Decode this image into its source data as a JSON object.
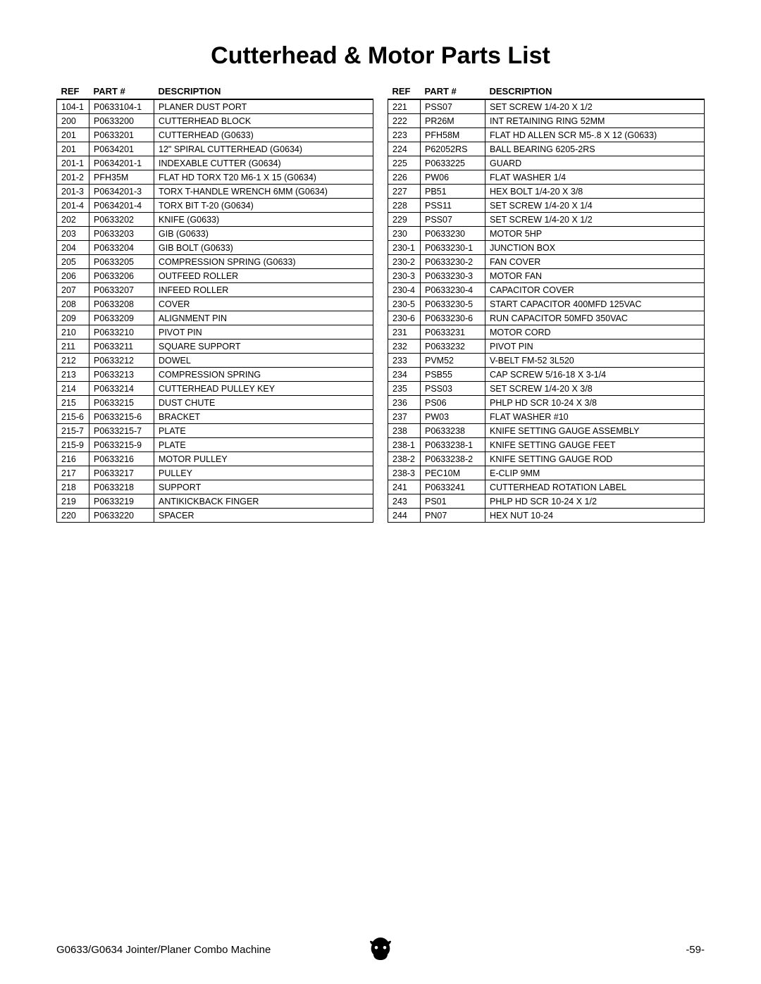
{
  "title": "Cutterhead & Motor Parts List",
  "headers": {
    "ref": "REF",
    "part": "PART #",
    "desc": "DESCRIPTION"
  },
  "left": [
    {
      "ref": "104-1",
      "part": "P0633104-1",
      "desc": "PLANER DUST PORT"
    },
    {
      "ref": "200",
      "part": "P0633200",
      "desc": "CUTTERHEAD BLOCK"
    },
    {
      "ref": "201",
      "part": "P0633201",
      "desc": "CUTTERHEAD  (G0633)"
    },
    {
      "ref": "201",
      "part": "P0634201",
      "desc": "12\" SPIRAL  CUTTERHEAD (G0634)"
    },
    {
      "ref": "201-1",
      "part": "P0634201-1",
      "desc": "INDEXABLE CUTTER (G0634)"
    },
    {
      "ref": "201-2",
      "part": "PFH35M",
      "desc": "FLAT HD TORX T20 M6-1 X 15 (G0634)"
    },
    {
      "ref": "201-3",
      "part": "P0634201-3",
      "desc": "TORX T-HANDLE WRENCH 6MM (G0634)"
    },
    {
      "ref": "201-4",
      "part": "P0634201-4",
      "desc": "TORX BIT T-20 (G0634)"
    },
    {
      "ref": "202",
      "part": "P0633202",
      "desc": "KNIFE (G0633)"
    },
    {
      "ref": "203",
      "part": "P0633203",
      "desc": "GIB (G0633)"
    },
    {
      "ref": "204",
      "part": "P0633204",
      "desc": "GIB BOLT (G0633)"
    },
    {
      "ref": "205",
      "part": "P0633205",
      "desc": "COMPRESSION SPRING (G0633)"
    },
    {
      "ref": "206",
      "part": "P0633206",
      "desc": "OUTFEED ROLLER"
    },
    {
      "ref": "207",
      "part": "P0633207",
      "desc": "INFEED ROLLER"
    },
    {
      "ref": "208",
      "part": "P0633208",
      "desc": "COVER"
    },
    {
      "ref": "209",
      "part": "P0633209",
      "desc": "ALIGNMENT PIN"
    },
    {
      "ref": "210",
      "part": "P0633210",
      "desc": "PIVOT PIN"
    },
    {
      "ref": "211",
      "part": "P0633211",
      "desc": "SQUARE SUPPORT"
    },
    {
      "ref": "212",
      "part": "P0633212",
      "desc": "DOWEL"
    },
    {
      "ref": "213",
      "part": "P0633213",
      "desc": "COMPRESSION SPRING"
    },
    {
      "ref": "214",
      "part": "P0633214",
      "desc": "CUTTERHEAD PULLEY KEY"
    },
    {
      "ref": "215",
      "part": "P0633215",
      "desc": "DUST CHUTE"
    },
    {
      "ref": "215-6",
      "part": "P0633215-6",
      "desc": "BRACKET"
    },
    {
      "ref": "215-7",
      "part": "P0633215-7",
      "desc": "PLATE"
    },
    {
      "ref": "215-9",
      "part": "P0633215-9",
      "desc": "PLATE"
    },
    {
      "ref": "216",
      "part": "P0633216",
      "desc": "MOTOR PULLEY"
    },
    {
      "ref": "217",
      "part": "P0633217",
      "desc": "PULLEY"
    },
    {
      "ref": "218",
      "part": "P0633218",
      "desc": "SUPPORT"
    },
    {
      "ref": "219",
      "part": "P0633219",
      "desc": "ANTIKICKBACK FINGER"
    },
    {
      "ref": "220",
      "part": "P0633220",
      "desc": "SPACER"
    }
  ],
  "right": [
    {
      "ref": "221",
      "part": "PSS07",
      "desc": "SET SCREW 1/4-20 X 1/2"
    },
    {
      "ref": "222",
      "part": "PR26M",
      "desc": "INT RETAINING RING 52MM"
    },
    {
      "ref": "223",
      "part": "PFH58M",
      "desc": "FLAT HD ALLEN SCR M5-.8 X 12 (G0633)"
    },
    {
      "ref": "224",
      "part": "P62052RS",
      "desc": "BALL BEARING 6205-2RS"
    },
    {
      "ref": "225",
      "part": "P0633225",
      "desc": "GUARD"
    },
    {
      "ref": "226",
      "part": "PW06",
      "desc": "FLAT WASHER 1/4"
    },
    {
      "ref": "227",
      "part": "PB51",
      "desc": "HEX BOLT 1/4-20 X 3/8"
    },
    {
      "ref": "228",
      "part": "PSS11",
      "desc": "SET SCREW 1/4-20 X 1/4"
    },
    {
      "ref": "229",
      "part": "PSS07",
      "desc": "SET SCREW 1/4-20 X 1/2"
    },
    {
      "ref": "230",
      "part": "P0633230",
      "desc": "MOTOR 5HP"
    },
    {
      "ref": "230-1",
      "part": "P0633230-1",
      "desc": "JUNCTION BOX"
    },
    {
      "ref": "230-2",
      "part": "P0633230-2",
      "desc": "FAN COVER"
    },
    {
      "ref": "230-3",
      "part": "P0633230-3",
      "desc": "MOTOR FAN"
    },
    {
      "ref": "230-4",
      "part": "P0633230-4",
      "desc": "CAPACITOR COVER"
    },
    {
      "ref": "230-5",
      "part": "P0633230-5",
      "desc": "START CAPACITOR 400MFD 125VAC"
    },
    {
      "ref": "230-6",
      "part": "P0633230-6",
      "desc": "RUN CAPACITOR 50MFD 350VAC"
    },
    {
      "ref": "231",
      "part": "P0633231",
      "desc": "MOTOR CORD"
    },
    {
      "ref": "232",
      "part": "P0633232",
      "desc": "PIVOT PIN"
    },
    {
      "ref": "233",
      "part": "PVM52",
      "desc": "V-BELT FM-52 3L520"
    },
    {
      "ref": "234",
      "part": "PSB55",
      "desc": "CAP SCREW 5/16-18 X 3-1/4"
    },
    {
      "ref": "235",
      "part": "PSS03",
      "desc": "SET SCREW 1/4-20 X 3/8"
    },
    {
      "ref": "236",
      "part": "PS06",
      "desc": "PHLP HD SCR 10-24 X 3/8"
    },
    {
      "ref": "237",
      "part": "PW03",
      "desc": "FLAT WASHER #10"
    },
    {
      "ref": "238",
      "part": "P0633238",
      "desc": "KNIFE SETTING GAUGE ASSEMBLY"
    },
    {
      "ref": "238-1",
      "part": "P0633238-1",
      "desc": "KNIFE SETTING GAUGE FEET"
    },
    {
      "ref": "238-2",
      "part": "P0633238-2",
      "desc": "KNIFE SETTING GAUGE ROD"
    },
    {
      "ref": "238-3",
      "part": "PEC10M",
      "desc": "E-CLIP 9MM"
    },
    {
      "ref": "241",
      "part": "P0633241",
      "desc": "CUTTERHEAD ROTATION LABEL"
    },
    {
      "ref": "243",
      "part": "PS01",
      "desc": "PHLP HD SCR 10-24 X 1/2"
    },
    {
      "ref": "244",
      "part": "PN07",
      "desc": "HEX NUT 10-24"
    }
  ],
  "footer": {
    "left": "G0633/G0634 Jointer/Planer Combo Machine",
    "right": "-59-"
  }
}
